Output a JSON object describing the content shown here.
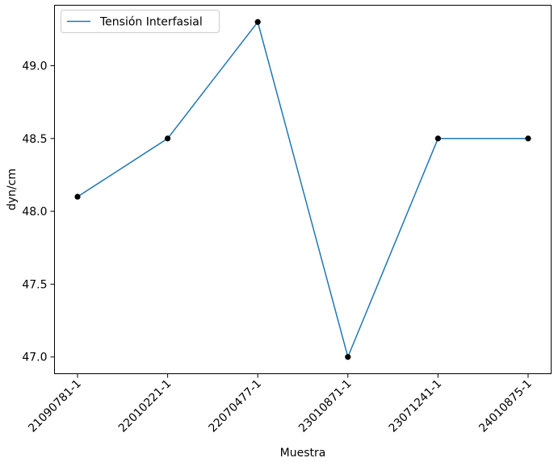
{
  "chart_data": {
    "type": "line",
    "categories": [
      "21090781-1",
      "22010221-1",
      "22070477-1",
      "23010871-1",
      "23071241-1",
      "24010875-1"
    ],
    "series": [
      {
        "name": "Tensión Interfasial",
        "values": [
          48.1,
          48.5,
          49.3,
          47.0,
          48.5,
          48.5
        ],
        "color": "#1f77b4",
        "marker_color": "#000000"
      }
    ],
    "xlabel": "Muestra",
    "ylabel": "dyn/cm",
    "ylim": [
      46.885,
      49.415
    ],
    "yticks": [
      "47.0",
      "47.5",
      "48.0",
      "48.5",
      "49.0"
    ],
    "grid": false,
    "legend_position": "top-left"
  }
}
